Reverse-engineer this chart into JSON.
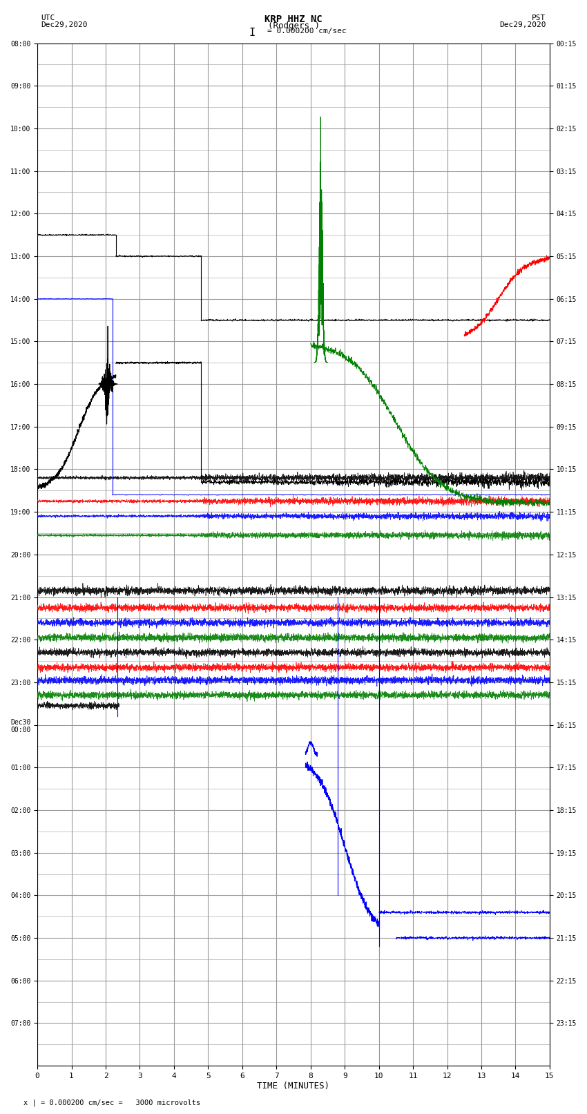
{
  "title_line1": "KRP HHZ NC",
  "title_line2": "(Rodgers )",
  "scale_text": "I = 0.000200 cm/sec",
  "footer_text": "x | = 0.000200 cm/sec =   3000 microvolts",
  "utc_label": "UTC",
  "utc_date": "Dec29,2020",
  "pst_label": "PST",
  "pst_date": "Dec29,2020",
  "xlabel": "TIME (MINUTES)",
  "xmin": 0,
  "xmax": 15,
  "ytick_utc": [
    "08:00",
    "09:00",
    "10:00",
    "11:00",
    "12:00",
    "13:00",
    "14:00",
    "15:00",
    "16:00",
    "17:00",
    "18:00",
    "19:00",
    "20:00",
    "21:00",
    "22:00",
    "23:00",
    "Dec30\n00:00",
    "01:00",
    "02:00",
    "03:00",
    "04:00",
    "05:00",
    "06:00",
    "07:00"
  ],
  "ytick_pst": [
    "00:15",
    "01:15",
    "02:15",
    "03:15",
    "04:15",
    "05:15",
    "06:15",
    "07:15",
    "08:15",
    "09:15",
    "10:15",
    "11:15",
    "12:15",
    "13:15",
    "14:15",
    "15:15",
    "16:15",
    "17:15",
    "18:15",
    "19:15",
    "20:15",
    "21:15",
    "22:15",
    "23:15"
  ],
  "bg_color": "#ffffff",
  "grid_color": "#999999",
  "figsize": [
    8.5,
    16.13
  ]
}
